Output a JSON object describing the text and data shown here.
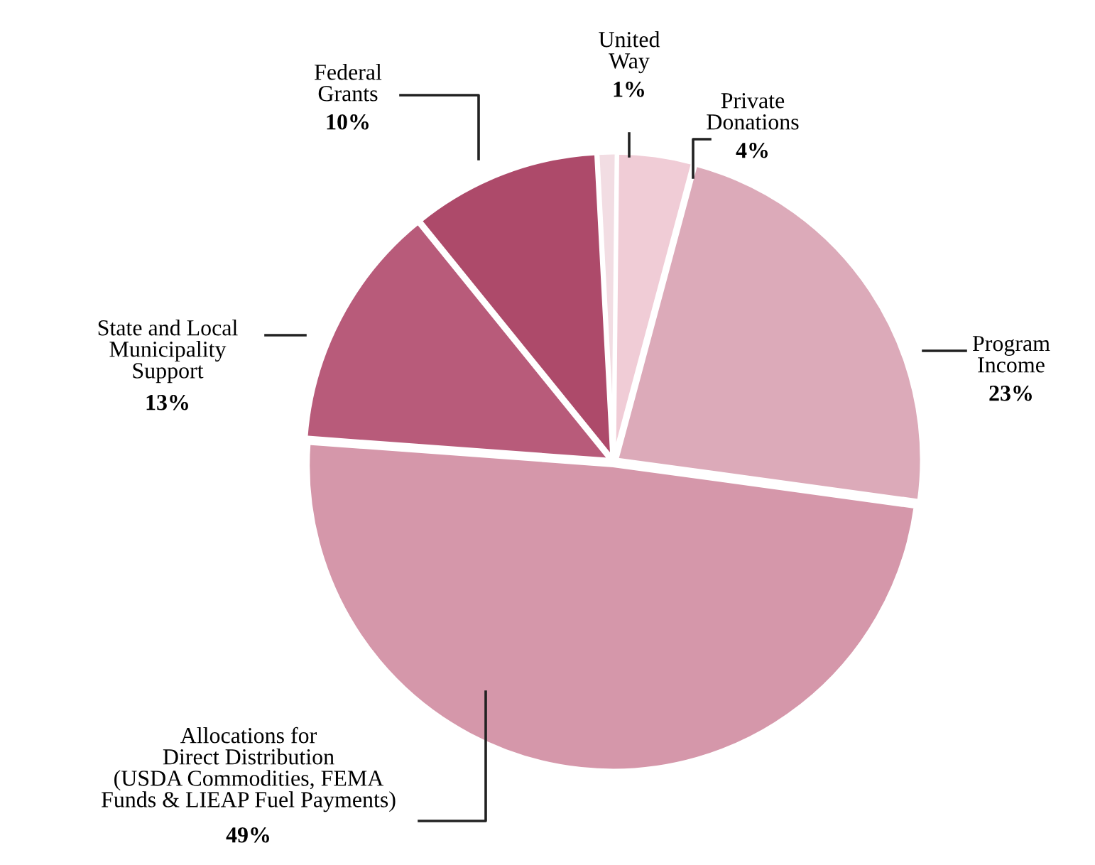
{
  "chart_data": {
    "type": "pie",
    "categories": [
      "United\nWay",
      "Private\nDonations",
      "Program\nIncome",
      "Allocations for\nDirect Distribution\n(USDA Commodities, FEMA\nFunds & LIEAP Fuel Payments)",
      "State and Local\nMunicipality\nSupport",
      "Federal\nGrants"
    ],
    "values": [
      1,
      4,
      23,
      49,
      13,
      10
    ],
    "colors": [
      "#f2dde3",
      "#f0ccd6",
      "#dcaab9",
      "#d597aa",
      "#b85b7a",
      "#ad4a6a"
    ],
    "value_labels": [
      "1%",
      "4%",
      "23%",
      "49%",
      "13%",
      "10%"
    ]
  }
}
